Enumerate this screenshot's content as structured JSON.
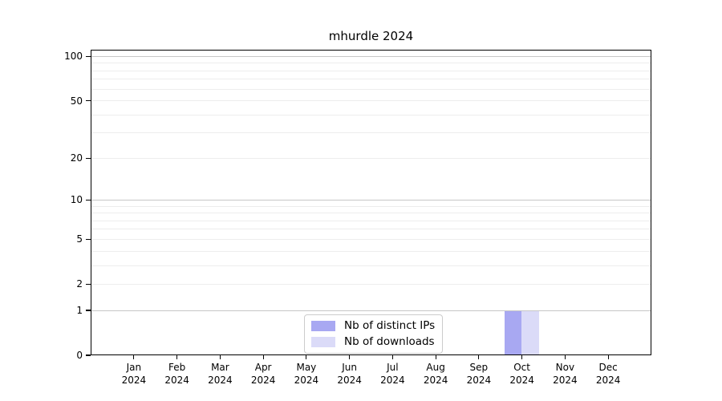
{
  "chart_data": {
    "type": "bar",
    "title": "mhurdle 2024",
    "x_months": [
      "Jan",
      "Feb",
      "Mar",
      "Apr",
      "May",
      "Jun",
      "Jul",
      "Aug",
      "Sep",
      "Oct",
      "Nov",
      "Dec"
    ],
    "x_year": "2024",
    "series": [
      {
        "name": "Nb of distinct IPs",
        "color": "#a8a8f2",
        "values": [
          0,
          0,
          0,
          0,
          0,
          0,
          0,
          0,
          0,
          1,
          0,
          0
        ]
      },
      {
        "name": "Nb of downloads",
        "color": "#dbdbf8",
        "values": [
          0,
          0,
          0,
          0,
          0,
          0,
          0,
          0,
          0,
          1,
          0,
          0
        ]
      }
    ],
    "y_scale": "log1p",
    "y_max": 111,
    "y_major_ticks": [
      0,
      1,
      2,
      5,
      10,
      20,
      50,
      100
    ],
    "grid_major_values": [
      1,
      10,
      100
    ],
    "grid_minor_values": [
      2,
      3,
      4,
      5,
      6,
      7,
      8,
      9,
      20,
      30,
      40,
      50,
      60,
      70,
      80,
      90
    ],
    "legend_position": "lower center",
    "colors": {
      "grid_major": "#c7c7c7",
      "grid_minor": "#ededed",
      "axis": "#000000",
      "background": "#ffffff"
    }
  }
}
